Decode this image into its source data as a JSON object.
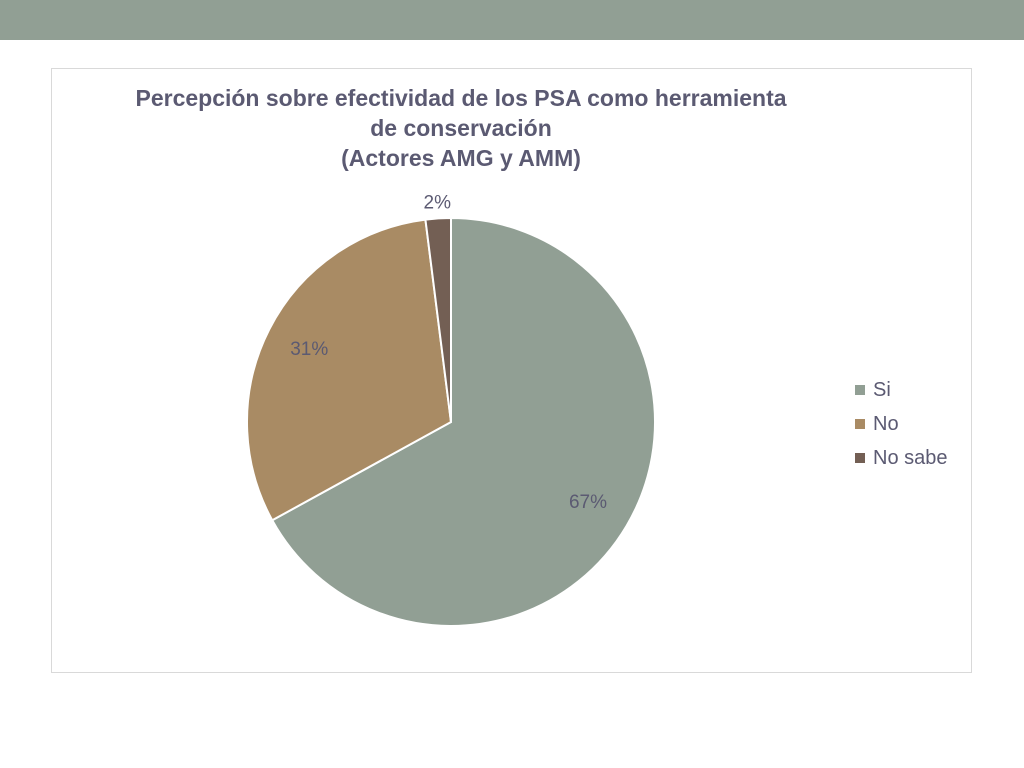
{
  "chart_data": {
    "type": "pie",
    "title_lines": [
      "Percepción sobre efectividad de los PSA como herramienta",
      "de conservación",
      "(Actores AMG y AMM)"
    ],
    "categories": [
      "Si",
      "No",
      "No sabe"
    ],
    "values": [
      67,
      31,
      2
    ],
    "labels": [
      "67%",
      "31%",
      "2%"
    ],
    "colors": [
      "#919f94",
      "#a98b64",
      "#735f54"
    ],
    "legend_position": "right"
  }
}
